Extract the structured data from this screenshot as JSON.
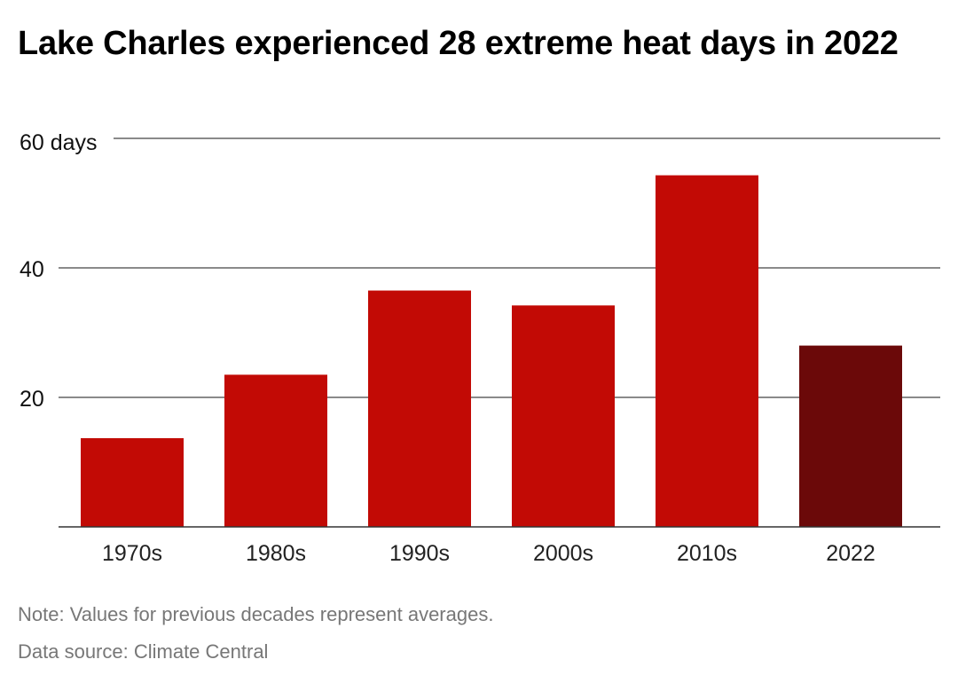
{
  "chart_data": {
    "type": "bar",
    "title": "Lake Charles experienced 28 extreme heat days in 2022",
    "categories": [
      "1970s",
      "1980s",
      "1990s",
      "2000s",
      "2010s",
      "2022"
    ],
    "values": [
      13.7,
      23.5,
      36.5,
      34.2,
      54.3,
      28
    ],
    "y_ticks": [
      {
        "value": 20,
        "label": "20"
      },
      {
        "value": 40,
        "label": "40"
      },
      {
        "value": 60,
        "label": "60 days"
      }
    ],
    "ylim": [
      0,
      60
    ],
    "grid": true,
    "legend": "none",
    "colors": {
      "default_bar": "#c20a05",
      "highlight_bar": "#6b0909",
      "gridline": "#444444",
      "axis": "#333333"
    },
    "highlight_category": "2022"
  },
  "footer": {
    "note": "Note: Values for previous decades represent averages.",
    "source": "Data source: Climate Central"
  }
}
